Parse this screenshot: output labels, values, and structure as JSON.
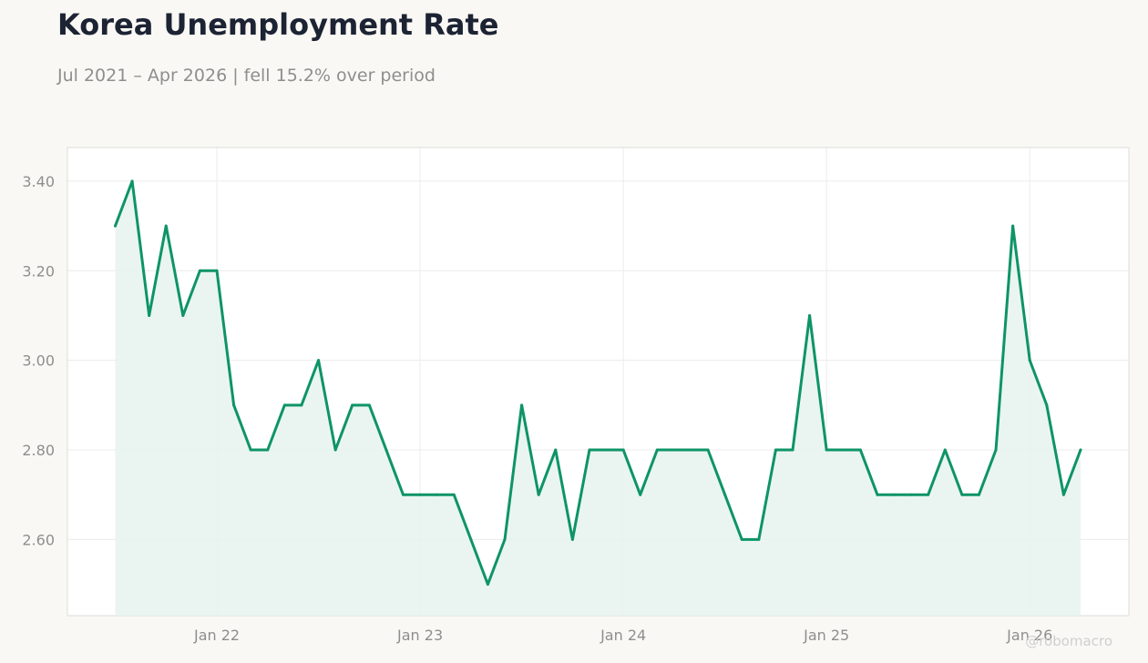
{
  "header": {
    "title": "Korea Unemployment Rate",
    "subtitle": "Jul 2021 – Apr 2026 | fell 15.2% over period"
  },
  "watermark": "@robomacro",
  "colors": {
    "line": "#0e9467",
    "fill": "#e6f3ee",
    "grid": "#ececec",
    "frame": "#dcdcd8"
  },
  "chart_data": {
    "type": "area",
    "title": "Korea Unemployment Rate",
    "xlabel": "",
    "ylabel": "",
    "x_start": "2021-07",
    "x_end": "2026-04",
    "x_ticks": [
      {
        "date": "2022-01",
        "label": "Jan 22"
      },
      {
        "date": "2023-01",
        "label": "Jan 23"
      },
      {
        "date": "2024-01",
        "label": "Jan 24"
      },
      {
        "date": "2025-01",
        "label": "Jan 25"
      },
      {
        "date": "2026-01",
        "label": "Jan 26"
      }
    ],
    "y_ticks": [
      2.6,
      2.8,
      3.0,
      3.2,
      3.4
    ],
    "ylim": [
      2.43,
      3.475
    ],
    "grid": true,
    "legend": "none",
    "series": [
      {
        "x": [
          "2021-07",
          "2021-08",
          "2021-09",
          "2021-10",
          "2021-11",
          "2021-12",
          "2022-01",
          "2022-02",
          "2022-03",
          "2022-04",
          "2022-05",
          "2022-06",
          "2022-07",
          "2022-08",
          "2022-09",
          "2022-10",
          "2022-11",
          "2022-12",
          "2023-01",
          "2023-02",
          "2023-03",
          "2023-04",
          "2023-05",
          "2023-06",
          "2023-07",
          "2023-08",
          "2023-09",
          "2023-10",
          "2023-11",
          "2023-12",
          "2024-01",
          "2024-02",
          "2024-03",
          "2024-04",
          "2024-05",
          "2024-06",
          "2024-07",
          "2024-08",
          "2024-09",
          "2024-10",
          "2024-11",
          "2024-12",
          "2025-01",
          "2025-02",
          "2025-03",
          "2025-04",
          "2025-05",
          "2025-06",
          "2025-07",
          "2025-08",
          "2025-09",
          "2025-10",
          "2025-11",
          "2025-12",
          "2026-01",
          "2026-02",
          "2026-03",
          "2026-04"
        ],
        "values": [
          3.3,
          3.4,
          3.1,
          3.3,
          3.1,
          3.2,
          3.2,
          2.9,
          2.8,
          2.8,
          2.9,
          2.9,
          3.0,
          2.8,
          2.9,
          2.9,
          2.8,
          2.7,
          2.7,
          2.7,
          2.7,
          2.6,
          2.5,
          2.6,
          2.9,
          2.7,
          2.8,
          2.6,
          2.8,
          2.8,
          2.8,
          2.7,
          2.8,
          2.8,
          2.8,
          2.8,
          2.7,
          2.6,
          2.6,
          2.8,
          2.8,
          3.1,
          2.8,
          2.8,
          2.8,
          2.7,
          2.7,
          2.7,
          2.7,
          2.8,
          2.7,
          2.7,
          2.8,
          3.3,
          3.0,
          2.9,
          2.7,
          2.8
        ]
      }
    ]
  }
}
